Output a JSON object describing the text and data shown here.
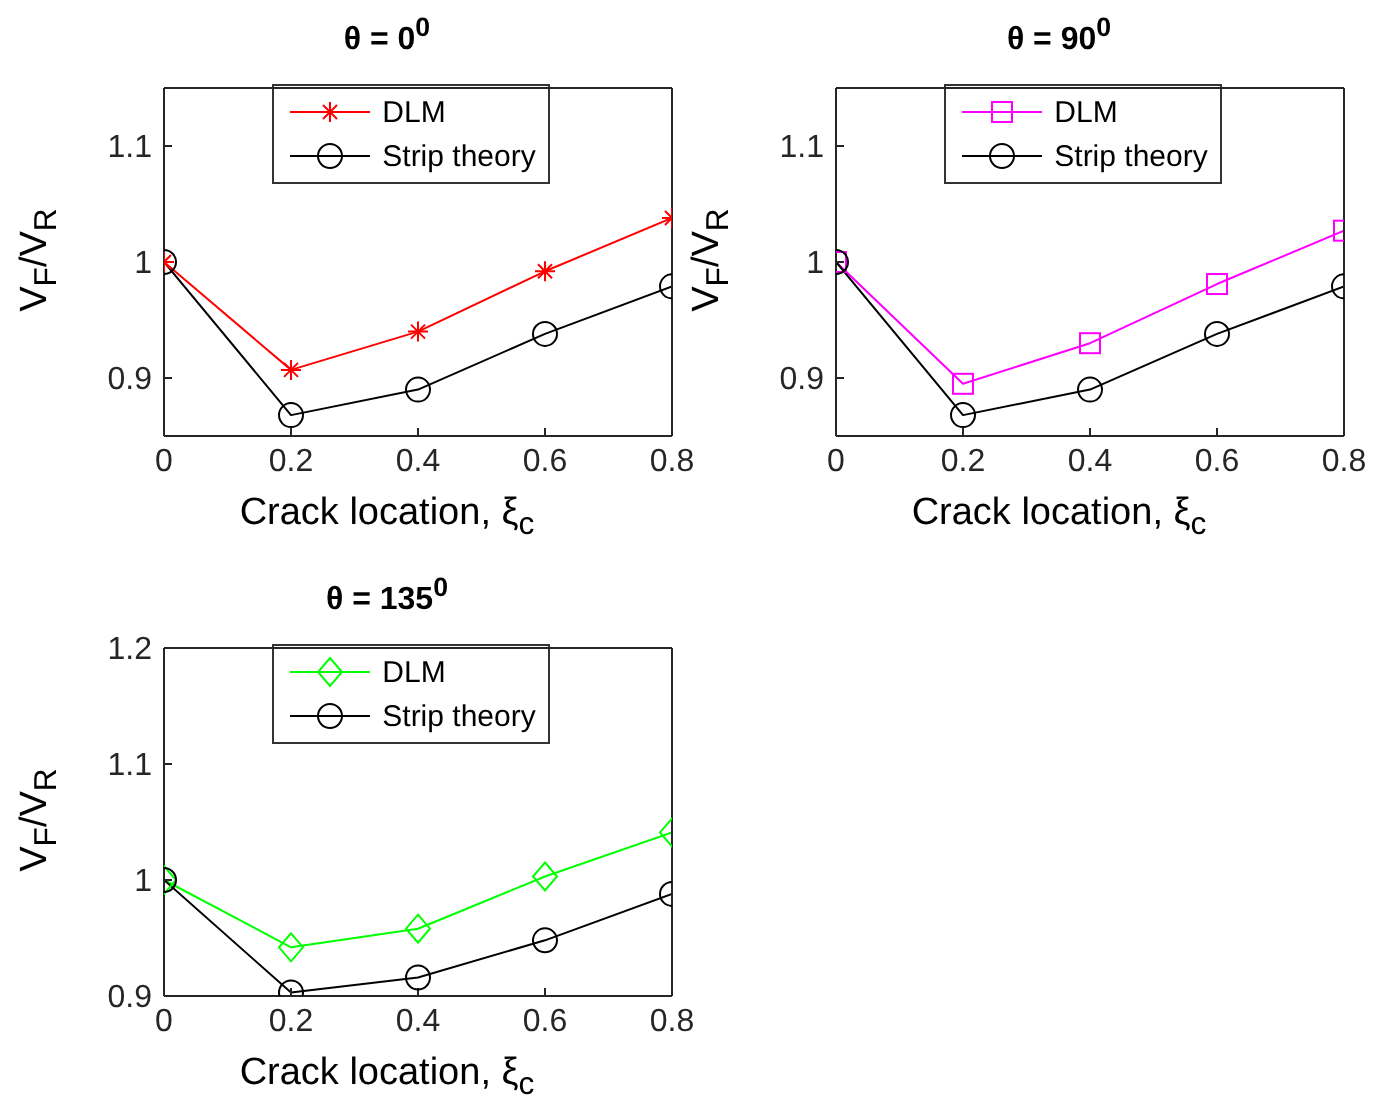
{
  "chart_data": [
    {
      "type": "line",
      "title": "θ = 0$^{0}$",
      "xlabel": "Crack location,  ξ$_{c}$",
      "ylabel": "V$_{F}$/V$_{R}$",
      "x": [
        0,
        0.2,
        0.4,
        0.6,
        0.8
      ],
      "xlim": [
        0,
        0.8
      ],
      "xticks": [
        0,
        0.2,
        0.4,
        0.6,
        0.8
      ],
      "ylim": [
        0.85,
        1.15
      ],
      "yticks": [
        0.9,
        1,
        1.1
      ],
      "grid": false,
      "legend": "top",
      "series": [
        {
          "name": "DLM",
          "color": "#ff0000",
          "marker": "cross",
          "values": [
            1.0,
            0.907,
            0.94,
            0.992,
            1.038
          ]
        },
        {
          "name": "Strip theory",
          "color": "#000000",
          "marker": "circle",
          "values": [
            1.0,
            0.868,
            0.89,
            0.938,
            0.979
          ]
        }
      ]
    },
    {
      "type": "line",
      "title": "θ = 90$^{0}$",
      "xlabel": "Crack location,  ξ$_{c}$",
      "ylabel": "V$_{F}$/V$_{R}$",
      "x": [
        0,
        0.2,
        0.4,
        0.6,
        0.8
      ],
      "xlim": [
        0,
        0.8
      ],
      "xticks": [
        0,
        0.2,
        0.4,
        0.6,
        0.8
      ],
      "ylim": [
        0.85,
        1.15
      ],
      "yticks": [
        0.9,
        1,
        1.1
      ],
      "grid": false,
      "legend": "top",
      "series": [
        {
          "name": "DLM",
          "color": "#ff00ff",
          "marker": "square",
          "values": [
            1.0,
            0.895,
            0.93,
            0.981,
            1.027
          ]
        },
        {
          "name": "Strip theory",
          "color": "#000000",
          "marker": "circle",
          "values": [
            1.0,
            0.868,
            0.89,
            0.938,
            0.979
          ]
        }
      ]
    },
    {
      "type": "line",
      "title": "θ = 135$^{0}$",
      "xlabel": "Crack location,  ξ$_{c}$",
      "ylabel": "V$_{F}$/V$_{R}$",
      "x": [
        0,
        0.2,
        0.4,
        0.6,
        0.8
      ],
      "xlim": [
        0,
        0.8
      ],
      "xticks": [
        0,
        0.2,
        0.4,
        0.6,
        0.8
      ],
      "ylim": [
        0.9,
        1.2
      ],
      "yticks": [
        0.9,
        1,
        1.1,
        1.2
      ],
      "grid": false,
      "legend": "top",
      "series": [
        {
          "name": "DLM",
          "color": "#00ff00",
          "marker": "diamond",
          "values": [
            1.0,
            0.942,
            0.958,
            1.003,
            1.041
          ]
        },
        {
          "name": "Strip theory",
          "color": "#000000",
          "marker": "circle",
          "values": [
            1.0,
            0.903,
            0.916,
            0.948,
            0.988
          ]
        }
      ]
    }
  ]
}
